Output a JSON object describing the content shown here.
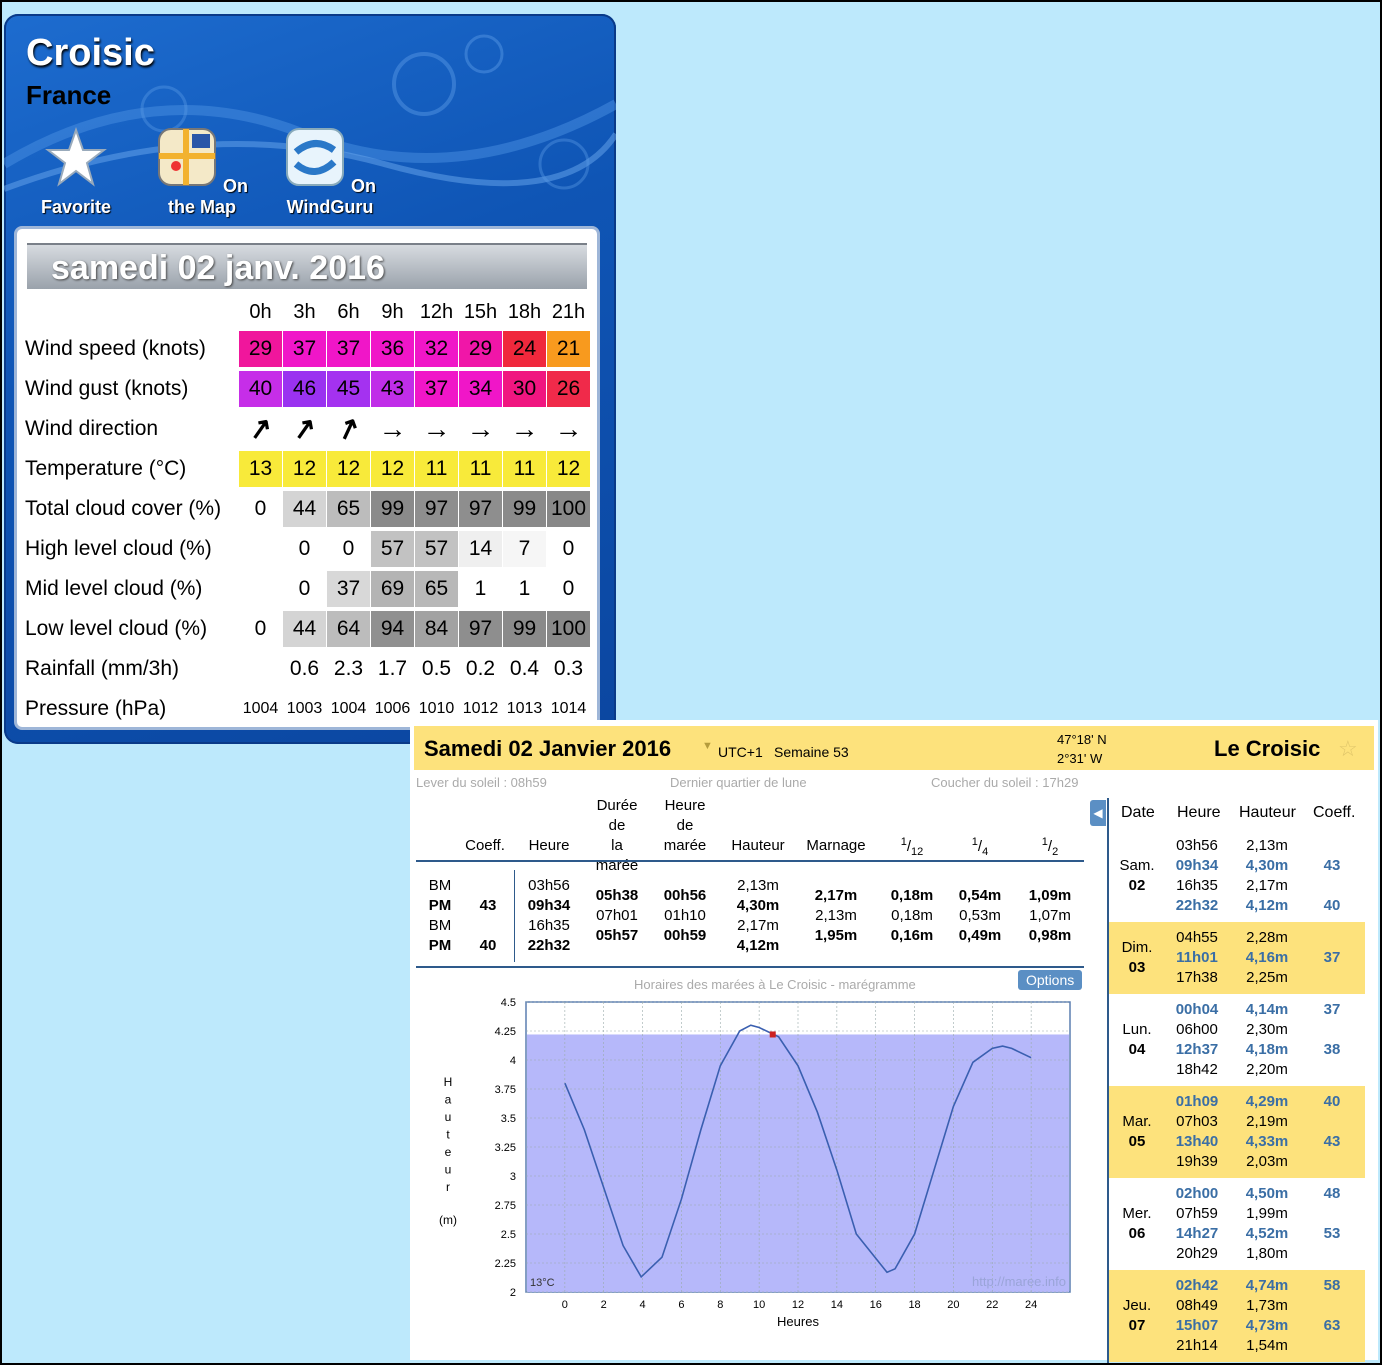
{
  "weather": {
    "city": "Croisic",
    "country": "France",
    "buttons": [
      {
        "label": "Favorite",
        "icon": "star-icon"
      },
      {
        "label": "On the Map",
        "icon": "map-icon"
      },
      {
        "label": "On WindGuru",
        "icon": "windguru-icon"
      }
    ],
    "date": "samedi 02 janv. 2016",
    "hours": [
      "0h",
      "3h",
      "6h",
      "9h",
      "12h",
      "15h",
      "18h",
      "21h"
    ],
    "rows": [
      {
        "label": "Wind speed (knots)",
        "values": [
          "29",
          "37",
          "37",
          "36",
          "32",
          "29",
          "24",
          "21"
        ],
        "colors": [
          "#f0169c",
          "#f016c8",
          "#f016c8",
          "#f016c8",
          "#f016c8",
          "#f016a8",
          "#f0283c",
          "#f89a1e"
        ]
      },
      {
        "label": "Wind gust (knots)",
        "values": [
          "40",
          "46",
          "45",
          "43",
          "37",
          "34",
          "30",
          "26"
        ],
        "colors": [
          "#c62ee8",
          "#9a32f0",
          "#a432f0",
          "#c02ee8",
          "#f016c8",
          "#f016c8",
          "#f01680",
          "#f02a4a"
        ]
      },
      {
        "label": "Wind direction",
        "values": [
          "↗",
          "↗",
          "↗",
          "→",
          "→",
          "→",
          "→",
          "→"
        ],
        "colors": [
          "",
          "",
          "",
          "",
          "",
          "",
          "",
          ""
        ]
      },
      {
        "label": "Temperature (°C)",
        "values": [
          "13",
          "12",
          "12",
          "12",
          "11",
          "11",
          "11",
          "12"
        ],
        "colors": [
          "#f8ea3a",
          "#f8ea3a",
          "#f8ea3a",
          "#f8ea3a",
          "#f8ea3a",
          "#f8ea3a",
          "#f8ea3a",
          "#f8ea3a"
        ]
      },
      {
        "label": "Total cloud cover (%)",
        "values": [
          "0",
          "44",
          "65",
          "99",
          "97",
          "97",
          "99",
          "100"
        ],
        "colors": [
          "",
          "#d4d4d4",
          "#bcbcbc",
          "#8a8a8a",
          "#8e8e8e",
          "#8e8e8e",
          "#8a8a8a",
          "#888888"
        ]
      },
      {
        "label": "High level cloud (%)",
        "values": [
          "",
          "0",
          "0",
          "57",
          "57",
          "14",
          "7",
          "0"
        ],
        "colors": [
          "",
          "",
          "",
          "#c2c2c2",
          "#c2c2c2",
          "#efefef",
          "#f6f6f6",
          ""
        ]
      },
      {
        "label": "Mid level cloud (%)",
        "values": [
          "",
          "0",
          "37",
          "69",
          "65",
          "1",
          "1",
          "0"
        ],
        "colors": [
          "",
          "",
          "#d8d8d8",
          "#b4b4b4",
          "#b8b8b8",
          "",
          "",
          ""
        ]
      },
      {
        "label": "Low level cloud (%)",
        "values": [
          "0",
          "44",
          "64",
          "94",
          "84",
          "97",
          "99",
          "100"
        ],
        "colors": [
          "",
          "#d4d4d4",
          "#bcbcbc",
          "#909090",
          "#a2a2a2",
          "#8e8e8e",
          "#8a8a8a",
          "#888888"
        ]
      },
      {
        "label": "Rainfall (mm/3h)",
        "values": [
          "",
          "0.6",
          "2.3",
          "1.7",
          "0.5",
          "0.2",
          "0.4",
          "0.3"
        ],
        "colors": [
          "",
          "",
          "",
          "",
          "",
          "",
          "",
          ""
        ]
      },
      {
        "label": "Pressure (hPa)",
        "values": [
          "1004",
          "1003",
          "1004",
          "1006",
          "1010",
          "1012",
          "1013",
          "1014"
        ],
        "colors": [
          "",
          "",
          "",
          "",
          "",
          "",
          "",
          ""
        ]
      }
    ]
  },
  "tide": {
    "date": "Samedi 02 Janvier 2016",
    "utc": "UTC+1",
    "week": "Semaine 53",
    "lat": "47°18' N",
    "lon": "2°31' W",
    "place": "Le Croisic",
    "sunrise": "Lever du soleil : 08h59",
    "moon": "Dernier quartier de lune",
    "sunset": "Coucher du soleil : 17h29",
    "headers": {
      "coeff": "Coeff.",
      "heure": "Heure",
      "duree": "Durée de la marée",
      "heure_maree": "Heure de marée",
      "hauteur": "Hauteur",
      "marnage": "Marnage",
      "f12": "1/12",
      "f4": "1/4",
      "f2": "1/2"
    },
    "table": {
      "type": [
        "BM",
        "PM",
        "BM",
        "PM"
      ],
      "coeff": [
        "",
        "43",
        "",
        "40"
      ],
      "heure": [
        "03h56",
        "09h34",
        "16h35",
        "22h32"
      ],
      "duree": [
        "05h38",
        "07h01",
        "05h57"
      ],
      "heure_maree": [
        "00h56",
        "01h10",
        "00h59"
      ],
      "hauteur": [
        "2,13m",
        "4,30m",
        "2,17m",
        "4,12m"
      ],
      "marnage": [
        "2,17m",
        "2,13m",
        "1,95m"
      ],
      "f12": [
        "0,18m",
        "0,18m",
        "0,16m"
      ],
      "f4": [
        "0,54m",
        "0,53m",
        "0,49m"
      ],
      "f2": [
        "1,09m",
        "1,07m",
        "0,98m"
      ]
    },
    "chart_caption": "Horaires des marées à Le Croisic - marégramme",
    "options_label": "Options",
    "watermark": "http://maree.info",
    "temp_label": "13°C",
    "chart_data": {
      "type": "line",
      "xlabel": "Heures",
      "ylabel": "Hauteur (m)",
      "ylim": [
        2,
        4.5
      ],
      "xlim": [
        -2,
        26
      ],
      "xticks": [
        0,
        2,
        4,
        6,
        8,
        10,
        12,
        14,
        16,
        18,
        20,
        22,
        24
      ],
      "yticks": [
        2,
        2.25,
        2.5,
        2.75,
        3,
        3.25,
        3.5,
        3.75,
        4,
        4.25,
        4.5
      ],
      "shaded_below": 4.22,
      "current_point": {
        "x": 10.7,
        "y": 4.22
      },
      "series": [
        {
          "x": [
            0,
            1,
            2,
            3,
            3.93,
            5,
            6,
            7,
            8,
            9,
            9.57,
            10,
            11,
            12,
            13,
            14,
            15,
            16.58,
            17,
            18,
            19,
            20,
            21,
            22,
            22.53,
            23,
            24
          ],
          "y": [
            3.8,
            3.4,
            2.9,
            2.4,
            2.13,
            2.3,
            2.8,
            3.4,
            3.95,
            4.25,
            4.3,
            4.28,
            4.2,
            3.95,
            3.55,
            3.05,
            2.5,
            2.17,
            2.2,
            2.5,
            3.05,
            3.6,
            3.98,
            4.1,
            4.12,
            4.1,
            4.02
          ]
        }
      ]
    },
    "side": {
      "headers": [
        "Date",
        "Heure",
        "Hauteur",
        "Coeff."
      ],
      "days": [
        {
          "day": "Sam.",
          "num": "02",
          "times": [
            "03h56",
            "09h34",
            "16h35",
            "22h32"
          ],
          "heights": [
            "2,13m",
            "4,30m",
            "2,17m",
            "4,12m"
          ],
          "coeffs": [
            "",
            "43",
            "",
            "40"
          ],
          "pm": [
            false,
            true,
            false,
            true
          ]
        },
        {
          "day": "Dim.",
          "num": "03",
          "times": [
            "04h55",
            "11h01",
            "17h38"
          ],
          "heights": [
            "2,28m",
            "4,16m",
            "2,25m"
          ],
          "coeffs": [
            "",
            "37",
            ""
          ],
          "pm": [
            false,
            true,
            false
          ]
        },
        {
          "day": "Lun.",
          "num": "04",
          "times": [
            "00h04",
            "06h00",
            "12h37",
            "18h42"
          ],
          "heights": [
            "4,14m",
            "2,30m",
            "4,18m",
            "2,20m"
          ],
          "coeffs": [
            "37",
            "",
            "38",
            ""
          ],
          "pm": [
            true,
            false,
            true,
            false
          ]
        },
        {
          "day": "Mar.",
          "num": "05",
          "times": [
            "01h09",
            "07h03",
            "13h40",
            "19h39"
          ],
          "heights": [
            "4,29m",
            "2,19m",
            "4,33m",
            "2,03m"
          ],
          "coeffs": [
            "40",
            "",
            "43",
            ""
          ],
          "pm": [
            true,
            false,
            true,
            false
          ]
        },
        {
          "day": "Mer.",
          "num": "06",
          "times": [
            "02h00",
            "07h59",
            "14h27",
            "20h29"
          ],
          "heights": [
            "4,50m",
            "1,99m",
            "4,52m",
            "1,80m"
          ],
          "coeffs": [
            "48",
            "",
            "53",
            ""
          ],
          "pm": [
            true,
            false,
            true,
            false
          ]
        },
        {
          "day": "Jeu.",
          "num": "07",
          "times": [
            "02h42",
            "08h49",
            "15h07",
            "21h14"
          ],
          "heights": [
            "4,74m",
            "1,73m",
            "4,73m",
            "1,54m"
          ],
          "coeffs": [
            "58",
            "",
            "63",
            ""
          ],
          "pm": [
            true,
            false,
            true,
            false
          ]
        }
      ]
    }
  }
}
